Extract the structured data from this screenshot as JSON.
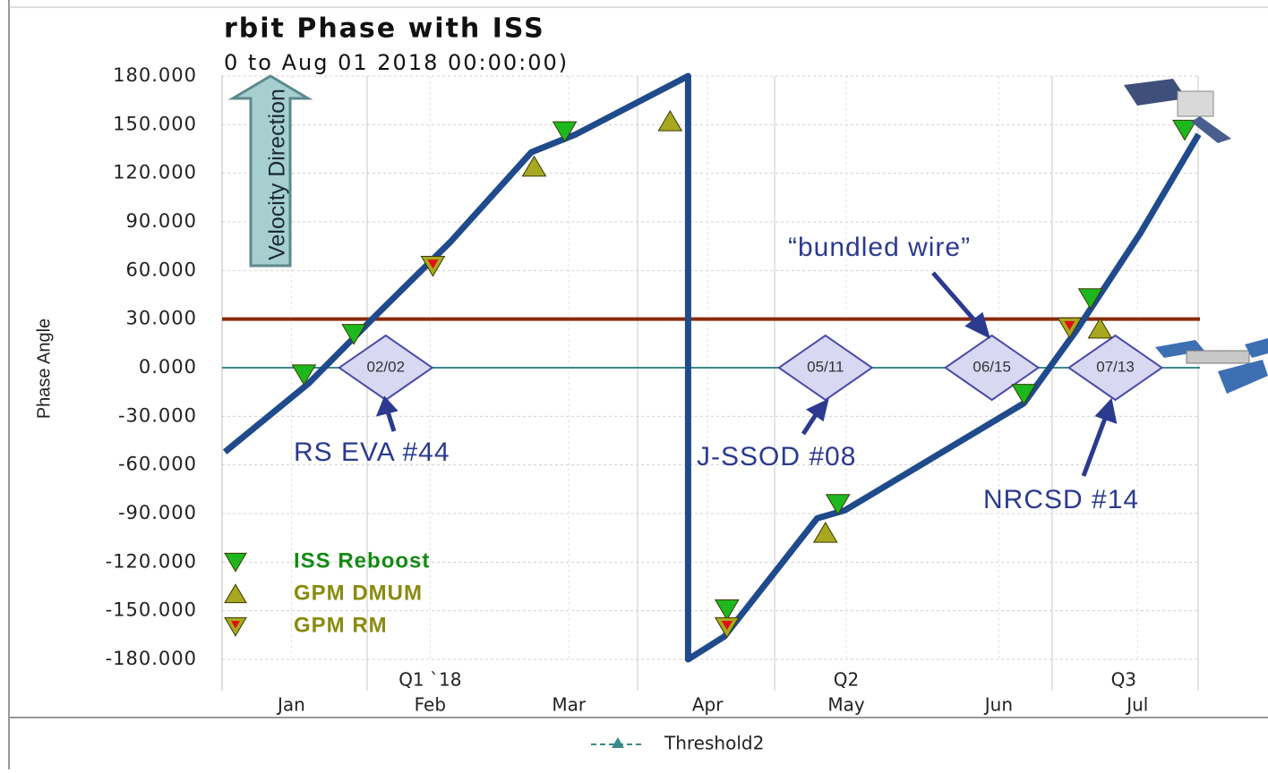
{
  "chart_data": {
    "type": "line",
    "title": "rbit Phase with ISS",
    "subtitle": "0 to Aug 01 2018 00:00:00)",
    "y_label": "Phase Angle",
    "xlim": [
      1.0,
      8.05
    ],
    "ylim": [
      -180,
      180
    ],
    "yticks": [
      {
        "value": 180,
        "label": "180.000"
      },
      {
        "value": 150,
        "label": "150.000"
      },
      {
        "value": 120,
        "label": "120.000"
      },
      {
        "value": 90,
        "label": "90.000"
      },
      {
        "value": 60,
        "label": "60.000"
      },
      {
        "value": 30,
        "label": "30.000"
      },
      {
        "value": 0,
        "label": "0.000"
      },
      {
        "value": -30,
        "label": "-30.000"
      },
      {
        "value": -60,
        "label": "-60.000"
      },
      {
        "value": -90,
        "label": "-90.000"
      },
      {
        "value": -120,
        "label": "-120.000"
      },
      {
        "value": -150,
        "label": "-150.000"
      },
      {
        "value": -180,
        "label": "-180.000"
      }
    ],
    "xticks": [
      {
        "value": 1.5,
        "label": "Jan"
      },
      {
        "value": 2.5,
        "label": "Feb"
      },
      {
        "value": 3.5,
        "label": "Mar"
      },
      {
        "value": 4.5,
        "label": "Apr"
      },
      {
        "value": 5.5,
        "label": "May"
      },
      {
        "value": 6.6,
        "label": "Jun"
      },
      {
        "value": 7.6,
        "label": "Jul"
      }
    ],
    "quarters": [
      {
        "value": 2.5,
        "label": "Q1 `18"
      },
      {
        "value": 5.5,
        "label": "Q2"
      },
      {
        "value": 7.5,
        "label": "Q3"
      }
    ],
    "grid": true,
    "line": {
      "color": "#1f4a8c",
      "x": [
        1.02,
        1.62,
        2.13,
        2.65,
        3.23,
        3.55,
        4.36,
        4.36,
        4.62,
        5.29,
        5.49,
        6.78,
        7.16,
        7.62,
        8.04
      ],
      "y": [
        -52,
        -10,
        34,
        78,
        133,
        144,
        180,
        -180,
        -166,
        -93,
        -88,
        -22,
        23,
        83,
        144
      ]
    },
    "thresholds": [
      {
        "value": 30,
        "color": "#8b2a0a"
      },
      {
        "name": "Threshold2",
        "value": 0,
        "color": "#3a8a8a"
      }
    ],
    "markers": [
      {
        "name": "ISS Reboost",
        "color": "#1db81d",
        "text_color": "#138a13",
        "shape": "down",
        "x": [
          1.59,
          1.95,
          3.47,
          4.64,
          5.44,
          6.78,
          7.26,
          7.94
        ],
        "y": [
          -4,
          21,
          146,
          -149,
          -84,
          -16,
          43,
          147
        ]
      },
      {
        "name": "GPM DMUM",
        "color": "#a8a820",
        "text_color": "#8a8a10",
        "shape": "up",
        "x": [
          3.25,
          4.23,
          5.35,
          7.33
        ],
        "y": [
          124,
          152,
          -102,
          24
        ]
      },
      {
        "name": "GPM RM",
        "color": "#a8a820",
        "text_color": "#8a8a10",
        "shape": "down-dot",
        "x": [
          2.52,
          4.64,
          7.11
        ],
        "y": [
          63,
          -160,
          25
        ]
      }
    ],
    "events": [
      {
        "x": 2.18,
        "label": "02/02"
      },
      {
        "x": 5.35,
        "label": "05/11"
      },
      {
        "x": 6.55,
        "label": "06/15"
      },
      {
        "x": 7.44,
        "label": "07/13"
      }
    ],
    "annotations": [
      "RS EVA #44",
      "J-SSOD #08",
      "“bundled wire”",
      "NRCSD #14",
      "Velocity Direction"
    ]
  }
}
